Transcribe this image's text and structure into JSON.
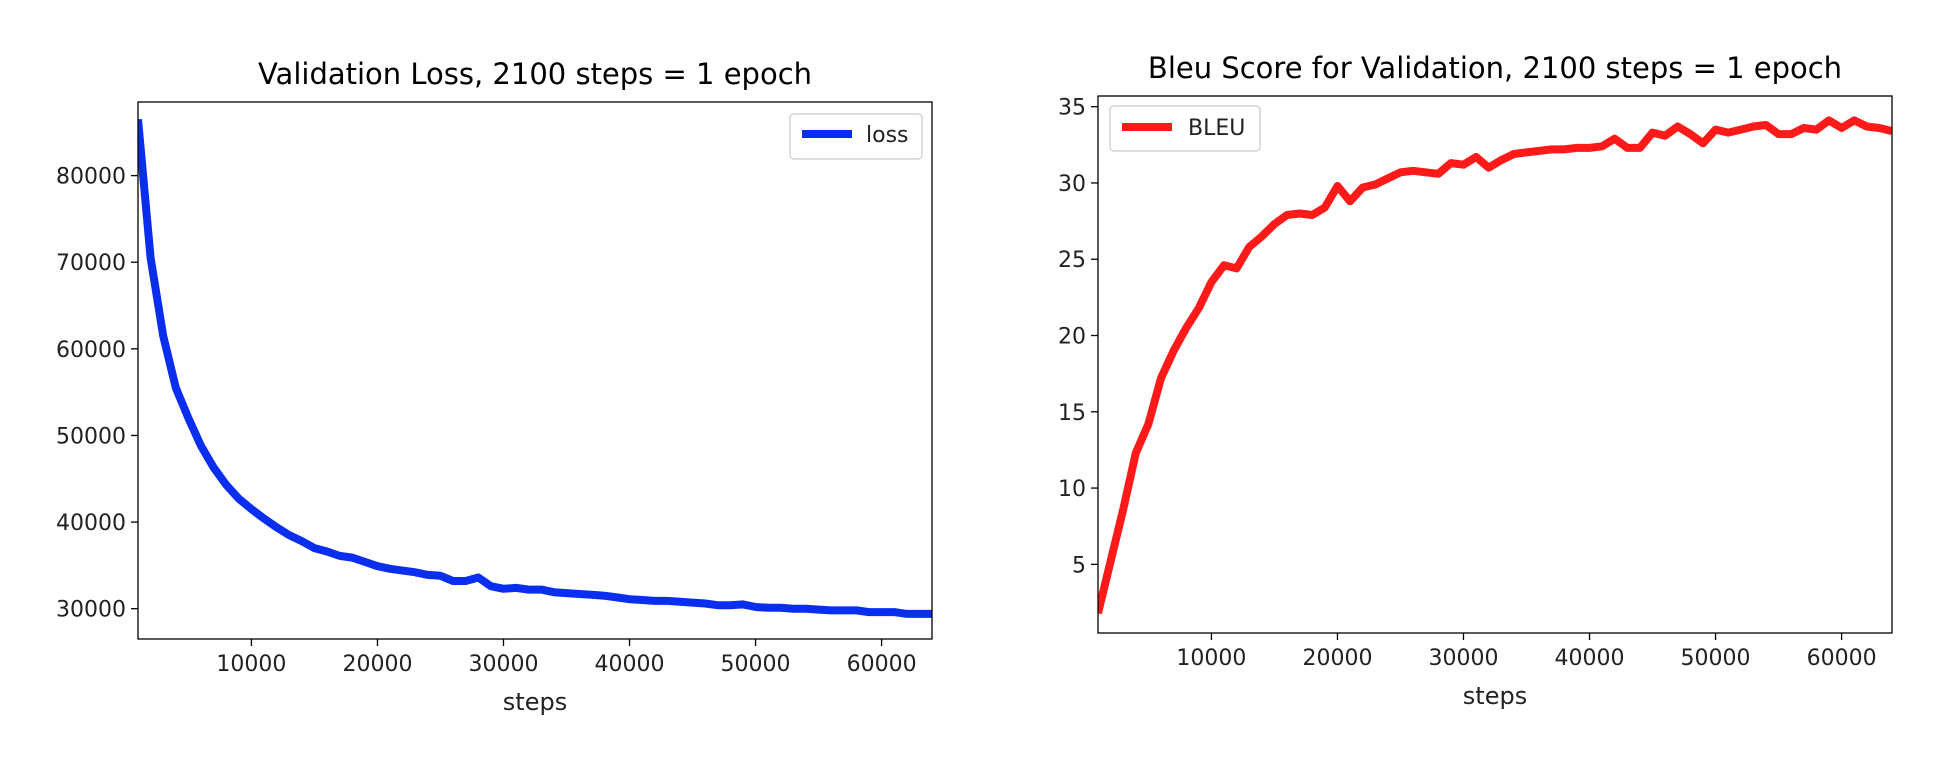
{
  "chart_data": [
    {
      "type": "line",
      "title": "Validation Loss, 2100 steps = 1 epoch",
      "xlabel": "steps",
      "ylabel": "",
      "xlim": [
        1000,
        64000
      ],
      "ylim": [
        26500,
        88500
      ],
      "xticks": [
        10000,
        20000,
        30000,
        40000,
        50000,
        60000
      ],
      "yticks": [
        30000,
        40000,
        50000,
        60000,
        70000,
        80000
      ],
      "legend": "top-right",
      "grid": false,
      "series": [
        {
          "name": "loss",
          "color": "#0a2ef0",
          "x": [
            1000,
            2000,
            3000,
            4000,
            5000,
            6000,
            7000,
            8000,
            9000,
            10000,
            11000,
            12000,
            13000,
            14000,
            15000,
            16000,
            17000,
            18000,
            19000,
            20000,
            21000,
            22000,
            23000,
            24000,
            25000,
            26000,
            27000,
            28000,
            29000,
            30000,
            31000,
            32000,
            33000,
            34000,
            35000,
            36000,
            37000,
            38000,
            39000,
            40000,
            41000,
            42000,
            43000,
            44000,
            45000,
            46000,
            47000,
            48000,
            49000,
            50000,
            51000,
            52000,
            53000,
            54000,
            55000,
            56000,
            57000,
            58000,
            59000,
            60000,
            61000,
            62000,
            63000,
            64000
          ],
          "y": [
            86500,
            70500,
            61500,
            55500,
            52000,
            48800,
            46300,
            44300,
            42700,
            41500,
            40400,
            39400,
            38500,
            37800,
            37000,
            36600,
            36100,
            35900,
            35400,
            34900,
            34600,
            34400,
            34200,
            33900,
            33800,
            33200,
            33200,
            33600,
            32600,
            32300,
            32400,
            32200,
            32200,
            31900,
            31800,
            31700,
            31600,
            31500,
            31300,
            31100,
            31000,
            30900,
            30900,
            30800,
            30700,
            30600,
            30400,
            30400,
            30500,
            30200,
            30100,
            30100,
            30000,
            30000,
            29900,
            29800,
            29800,
            29800,
            29600,
            29600,
            29600,
            29400,
            29400,
            29400
          ]
        }
      ]
    },
    {
      "type": "line",
      "title": "Bleu Score for Validation, 2100 steps = 1 epoch",
      "xlabel": "steps",
      "ylabel": "",
      "xlim": [
        1000,
        64000
      ],
      "ylim": [
        0.5,
        35.7
      ],
      "xticks": [
        10000,
        20000,
        30000,
        40000,
        50000,
        60000
      ],
      "yticks": [
        5,
        10,
        15,
        20,
        25,
        30,
        35
      ],
      "legend": "top-left",
      "grid": false,
      "series": [
        {
          "name": "BLEU",
          "color": "#ff1a1a",
          "x": [
            1000,
            2000,
            3000,
            4000,
            5000,
            6000,
            7000,
            8000,
            9000,
            10000,
            11000,
            12000,
            13000,
            14000,
            15000,
            16000,
            17000,
            18000,
            19000,
            20000,
            21000,
            22000,
            23000,
            24000,
            25000,
            26000,
            27000,
            28000,
            29000,
            30000,
            31000,
            32000,
            33000,
            34000,
            35000,
            36000,
            37000,
            38000,
            39000,
            40000,
            41000,
            42000,
            43000,
            44000,
            45000,
            46000,
            47000,
            48000,
            49000,
            50000,
            51000,
            52000,
            53000,
            54000,
            55000,
            56000,
            57000,
            58000,
            59000,
            60000,
            61000,
            62000,
            63000,
            64000
          ],
          "y": [
            1.8,
            5.2,
            8.6,
            12.3,
            14.2,
            17.2,
            19.0,
            20.5,
            21.8,
            23.5,
            24.6,
            24.4,
            25.8,
            26.5,
            27.3,
            27.9,
            28.0,
            27.9,
            28.4,
            29.8,
            28.8,
            29.7,
            29.9,
            30.3,
            30.7,
            30.8,
            30.7,
            30.6,
            31.3,
            31.2,
            31.7,
            31.0,
            31.5,
            31.9,
            32.0,
            32.1,
            32.2,
            32.2,
            32.3,
            32.3,
            32.4,
            32.9,
            32.3,
            32.3,
            33.3,
            33.1,
            33.7,
            33.2,
            32.6,
            33.5,
            33.3,
            33.5,
            33.7,
            33.8,
            33.2,
            33.2,
            33.6,
            33.5,
            34.1,
            33.6,
            34.1,
            33.7,
            33.6,
            33.4
          ]
        }
      ]
    }
  ]
}
